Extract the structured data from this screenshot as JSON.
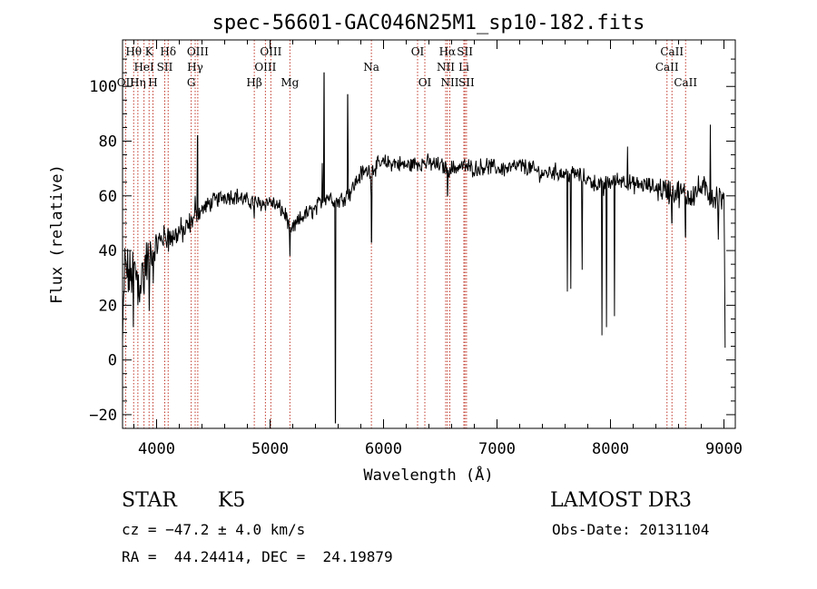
{
  "chart_data": {
    "type": "line",
    "title": "spec-56601-GAC046N25M1_sp10-182.fits",
    "xlabel": "Wavelength (Å)",
    "ylabel": "Flux (relative)",
    "xlim": [
      3700,
      9100
    ],
    "ylim": [
      -25,
      117
    ],
    "x_ticks": [
      4000,
      5000,
      6000,
      7000,
      8000,
      9000
    ],
    "x_tick_labels": [
      "4000",
      "5000",
      "6000",
      "7000",
      "8000",
      "9000"
    ],
    "y_ticks": [
      -20,
      0,
      20,
      40,
      60,
      80,
      100
    ],
    "y_tick_labels": [
      "−20",
      "0",
      "20",
      "40",
      "60",
      "80",
      "100"
    ],
    "spectrum_anchors": [
      [
        3700,
        5
      ],
      [
        3720,
        35
      ],
      [
        3760,
        30
      ],
      [
        3800,
        33
      ],
      [
        3850,
        28
      ],
      [
        3900,
        35
      ],
      [
        3950,
        38
      ],
      [
        4000,
        42
      ],
      [
        4050,
        45
      ],
      [
        4100,
        44
      ],
      [
        4150,
        45
      ],
      [
        4200,
        47
      ],
      [
        4250,
        47
      ],
      [
        4300,
        50
      ],
      [
        4350,
        53
      ],
      [
        4400,
        55
      ],
      [
        4500,
        58
      ],
      [
        4600,
        60
      ],
      [
        4700,
        60
      ],
      [
        4800,
        58
      ],
      [
        4850,
        58
      ],
      [
        4900,
        57
      ],
      [
        5000,
        58
      ],
      [
        5100,
        55
      ],
      [
        5150,
        52
      ],
      [
        5180,
        45
      ],
      [
        5200,
        48
      ],
      [
        5300,
        53
      ],
      [
        5400,
        55
      ],
      [
        5450,
        58
      ],
      [
        5500,
        60
      ],
      [
        5600,
        58
      ],
      [
        5700,
        61
      ],
      [
        5800,
        68
      ],
      [
        5900,
        70
      ],
      [
        6000,
        72
      ],
      [
        6100,
        72
      ],
      [
        6200,
        71
      ],
      [
        6300,
        72
      ],
      [
        6400,
        72
      ],
      [
        6500,
        71
      ],
      [
        6600,
        70
      ],
      [
        6700,
        71
      ],
      [
        6800,
        70
      ],
      [
        6900,
        71
      ],
      [
        7000,
        70
      ],
      [
        7100,
        70
      ],
      [
        7200,
        71
      ],
      [
        7300,
        70
      ],
      [
        7400,
        68
      ],
      [
        7500,
        69
      ],
      [
        7600,
        68
      ],
      [
        7700,
        68
      ],
      [
        7800,
        66
      ],
      [
        7900,
        64
      ],
      [
        8000,
        65
      ],
      [
        8100,
        66
      ],
      [
        8200,
        64
      ],
      [
        8300,
        64
      ],
      [
        8400,
        63
      ],
      [
        8500,
        62
      ],
      [
        8600,
        61
      ],
      [
        8700,
        60
      ],
      [
        8800,
        63
      ],
      [
        8900,
        60
      ],
      [
        9000,
        58
      ],
      [
        9010,
        10
      ]
    ],
    "spectrum_features": [
      [
        3795,
        12
      ],
      [
        3835,
        20
      ],
      [
        3890,
        24
      ],
      [
        3935,
        18
      ],
      [
        3970,
        28
      ],
      [
        4102,
        48
      ],
      [
        4340,
        60
      ],
      [
        4362,
        82
      ],
      [
        4861,
        52
      ],
      [
        5175,
        38
      ],
      [
        5460,
        72
      ],
      [
        5477,
        105
      ],
      [
        5577,
        -23
      ],
      [
        5683,
        97
      ],
      [
        5890,
        60
      ],
      [
        5893,
        43
      ],
      [
        6563,
        60
      ],
      [
        7620,
        25
      ],
      [
        7650,
        26
      ],
      [
        7750,
        33
      ],
      [
        7925,
        9
      ],
      [
        7940,
        60
      ],
      [
        7965,
        12
      ],
      [
        8035,
        16
      ],
      [
        8150,
        78
      ],
      [
        8542,
        50
      ],
      [
        8662,
        45
      ],
      [
        8880,
        86
      ],
      [
        8950,
        44
      ]
    ],
    "emission_lines": [
      {
        "name": "Hθ",
        "wave": 3798,
        "row": 0
      },
      {
        "name": "OII",
        "wave": 3727,
        "row": 2
      },
      {
        "name": "Hη",
        "wave": 3835,
        "row": 2
      },
      {
        "name": "HeI",
        "wave": 3889,
        "row": 1
      },
      {
        "name": "K",
        "wave": 3934,
        "row": 0
      },
      {
        "name": "H",
        "wave": 3968,
        "row": 2
      },
      {
        "name": "SII",
        "wave": 4072,
        "row": 1
      },
      {
        "name": "Hδ",
        "wave": 4102,
        "row": 0
      },
      {
        "name": "OIII",
        "wave": 4363,
        "row": 0
      },
      {
        "name": "Hγ",
        "wave": 4340,
        "row": 1
      },
      {
        "name": "G",
        "wave": 4305,
        "row": 2
      },
      {
        "name": "OIII",
        "wave": 5007,
        "row": 0
      },
      {
        "name": "OIII",
        "wave": 4959,
        "row": 1
      },
      {
        "name": "Hβ",
        "wave": 4861,
        "row": 2
      },
      {
        "name": "Mg",
        "wave": 5175,
        "row": 2
      },
      {
        "name": "Na",
        "wave": 5893,
        "row": 1
      },
      {
        "name": "OI",
        "wave": 6300,
        "row": 0
      },
      {
        "name": "OI",
        "wave": 6364,
        "row": 2
      },
      {
        "name": "Hα",
        "wave": 6563,
        "row": 0
      },
      {
        "name": "NII",
        "wave": 6548,
        "row": 1
      },
      {
        "name": "NII",
        "wave": 6584,
        "row": 2
      },
      {
        "name": "SII",
        "wave": 6717,
        "row": 0
      },
      {
        "name": "Li",
        "wave": 6708,
        "row": 1
      },
      {
        "name": "SII",
        "wave": 6731,
        "row": 2
      },
      {
        "name": "CaII",
        "wave": 8542,
        "row": 0
      },
      {
        "name": "CaII",
        "wave": 8498,
        "row": 1
      },
      {
        "name": "CaII",
        "wave": 8662,
        "row": 2
      }
    ]
  },
  "info": {
    "class": "STAR",
    "subclass": "K5",
    "survey": "LAMOST DR3",
    "cz": "cz = −47.2 ± 4.0 km/s",
    "obs_date": "Obs-Date: 20131104",
    "coords": "RA =  44.24414, DEC =  24.19879"
  },
  "colors": {
    "spectrum": "#000000",
    "line_markers": "#c0392b",
    "axes": "#000000"
  }
}
